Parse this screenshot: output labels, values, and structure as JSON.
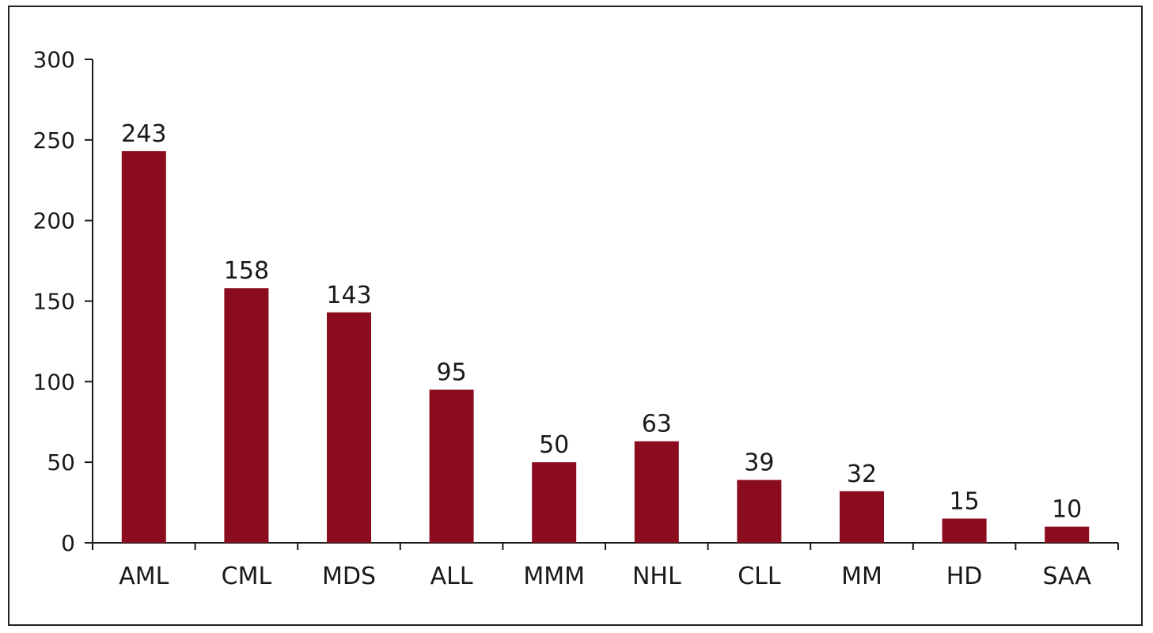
{
  "chart_data": {
    "type": "bar",
    "categories": [
      "AML",
      "CML",
      "MDS",
      "ALL",
      "MMM",
      "NHL",
      "CLL",
      "MM",
      "HD",
      "SAA"
    ],
    "values": [
      243,
      158,
      143,
      95,
      50,
      63,
      39,
      32,
      15,
      10
    ],
    "data_labels": [
      "243",
      "158",
      "143",
      "95",
      "50",
      "63",
      "39",
      "32",
      "15",
      "10"
    ],
    "title": "",
    "xlabel": "",
    "ylabel": "",
    "ylim": [
      0,
      300
    ],
    "yticks": [
      "0",
      "50",
      "100",
      "150",
      "200",
      "250",
      "300"
    ],
    "bar_color": "#8b0c1f",
    "grid": false,
    "legend": "none"
  }
}
